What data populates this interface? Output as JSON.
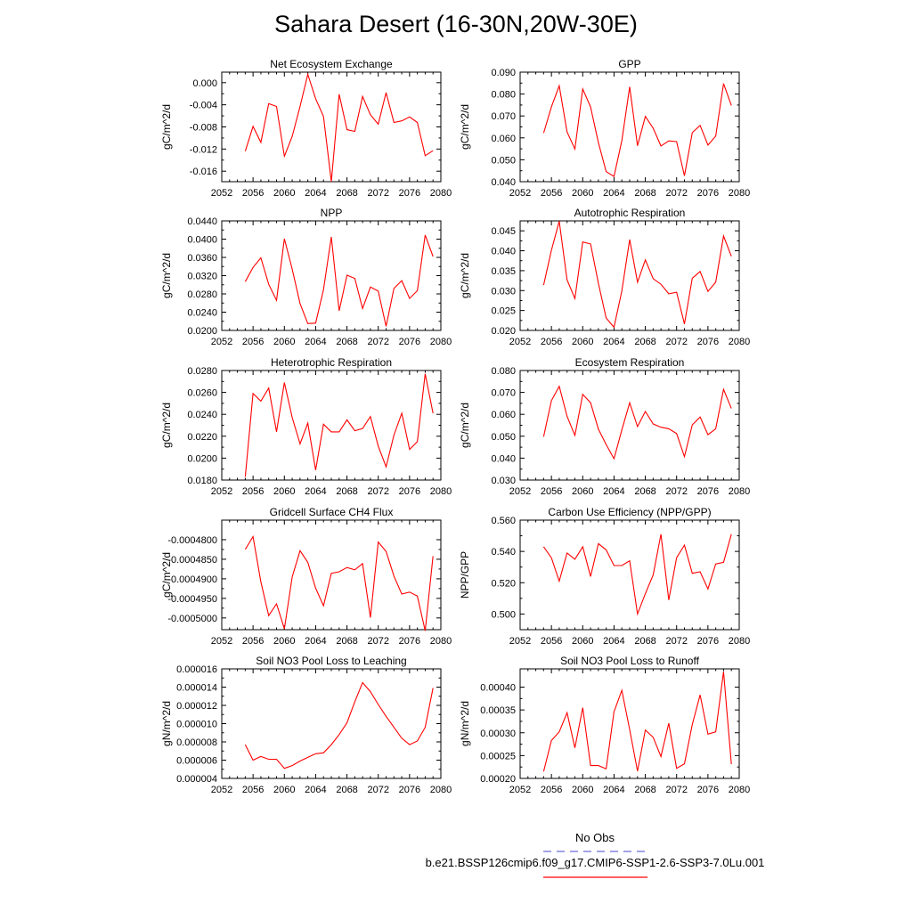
{
  "page": {
    "title": "Sahara Desert (16-30N,20W-30E)"
  },
  "legend": {
    "obs_label": "No Obs",
    "model_label": "b.e21.BSSP126cmip6.f09_g17.CMIP6-SSP1-2.6-SSP3-7.0Lu.001",
    "obs_color": "#6b6bdc",
    "model_color": "#ff0000"
  },
  "colors": {
    "line": "#ff0000",
    "axis": "#000000"
  },
  "chart_data": [
    {
      "type": "line",
      "title": "Net Ecosystem Exchange",
      "ylabel": "gC/m^2/d",
      "xlim": [
        2052,
        2080
      ],
      "ylim": [
        -0.0179,
        0.0019
      ],
      "xticks": [
        2052,
        2056,
        2060,
        2064,
        2068,
        2072,
        2076,
        2080
      ],
      "xtick_labels": [
        "2052",
        "2056",
        "2060",
        "2064",
        "2068",
        "2072",
        "2076",
        "2080"
      ],
      "yticks": [
        0.0,
        -0.004,
        -0.008,
        -0.012,
        -0.016
      ],
      "ytick_labels": [
        "0.000",
        "-0.004",
        "-0.008",
        "-0.012",
        "-0.016"
      ],
      "x": [
        2055,
        2056,
        2057,
        2058,
        2059,
        2060,
        2061,
        2062,
        2063,
        2064,
        2065,
        2066,
        2067,
        2068,
        2069,
        2070,
        2071,
        2072,
        2073,
        2074,
        2075,
        2076,
        2077,
        2078,
        2079
      ],
      "values": [
        -0.0124,
        -0.0079,
        -0.0108,
        -0.0038,
        -0.0043,
        -0.0133,
        -0.0097,
        -0.0043,
        0.0015,
        -0.0029,
        -0.0061,
        -0.0179,
        -0.0021,
        -0.0085,
        -0.0088,
        -0.0025,
        -0.0058,
        -0.0075,
        -0.0018,
        -0.0072,
        -0.0069,
        -0.0062,
        -0.0072,
        -0.0132,
        -0.0123
      ]
    },
    {
      "type": "line",
      "title": "GPP",
      "ylabel": "gC/m^2/d",
      "xlim": [
        2052,
        2080
      ],
      "ylim": [
        0.04,
        0.09
      ],
      "xticks": [
        2052,
        2056,
        2060,
        2064,
        2068,
        2072,
        2076,
        2080
      ],
      "xtick_labels": [
        "2052",
        "2056",
        "2060",
        "2064",
        "2068",
        "2072",
        "2076",
        "2080"
      ],
      "yticks": [
        0.04,
        0.05,
        0.06,
        0.07,
        0.08,
        0.09
      ],
      "ytick_labels": [
        "0.040",
        "0.050",
        "0.060",
        "0.070",
        "0.080",
        "0.090"
      ],
      "x": [
        2055,
        2056,
        2057,
        2058,
        2059,
        2060,
        2061,
        2062,
        2063,
        2064,
        2065,
        2066,
        2067,
        2068,
        2069,
        2070,
        2071,
        2072,
        2073,
        2074,
        2075,
        2076,
        2077,
        2078,
        2079
      ],
      "values": [
        0.0622,
        0.0741,
        0.0838,
        0.0627,
        0.0549,
        0.0823,
        0.0741,
        0.0578,
        0.0446,
        0.0424,
        0.0587,
        0.0833,
        0.0564,
        0.0698,
        0.0644,
        0.0563,
        0.0586,
        0.0583,
        0.0427,
        0.0624,
        0.0657,
        0.0567,
        0.0608,
        0.0848,
        0.0748
      ]
    },
    {
      "type": "line",
      "title": "NPP",
      "ylabel": "gC/m^2/d",
      "xlim": [
        2052,
        2080
      ],
      "ylim": [
        0.02,
        0.044
      ],
      "xticks": [
        2052,
        2056,
        2060,
        2064,
        2068,
        2072,
        2076,
        2080
      ],
      "xtick_labels": [
        "2052",
        "2056",
        "2060",
        "2064",
        "2068",
        "2072",
        "2076",
        "2080"
      ],
      "yticks": [
        0.02,
        0.024,
        0.028,
        0.032,
        0.036,
        0.04,
        0.044
      ],
      "ytick_labels": [
        "0.0200",
        "0.0240",
        "0.0280",
        "0.0320",
        "0.0360",
        "0.0400",
        "0.0440"
      ],
      "x": [
        2055,
        2056,
        2057,
        2058,
        2059,
        2060,
        2061,
        2062,
        2063,
        2064,
        2065,
        2066,
        2067,
        2068,
        2069,
        2070,
        2071,
        2072,
        2073,
        2074,
        2075,
        2076,
        2077,
        2078,
        2079
      ],
      "values": [
        0.0307,
        0.0338,
        0.0359,
        0.0301,
        0.0266,
        0.0401,
        0.0334,
        0.0259,
        0.0215,
        0.0216,
        0.0289,
        0.0405,
        0.0243,
        0.0321,
        0.0314,
        0.0248,
        0.0295,
        0.0286,
        0.0209,
        0.0292,
        0.0309,
        0.027,
        0.0287,
        0.0409,
        0.0362
      ]
    },
    {
      "type": "line",
      "title": "Autotrophic Respiration",
      "ylabel": "gC/m^2/d",
      "xlim": [
        2052,
        2080
      ],
      "ylim": [
        0.02,
        0.0475
      ],
      "xticks": [
        2052,
        2056,
        2060,
        2064,
        2068,
        2072,
        2076,
        2080
      ],
      "xtick_labels": [
        "2052",
        "2056",
        "2060",
        "2064",
        "2068",
        "2072",
        "2076",
        "2080"
      ],
      "yticks": [
        0.02,
        0.025,
        0.03,
        0.035,
        0.04,
        0.045
      ],
      "ytick_labels": [
        "0.020",
        "0.025",
        "0.030",
        "0.035",
        "0.040",
        "0.045"
      ],
      "x": [
        2055,
        2056,
        2057,
        2058,
        2059,
        2060,
        2061,
        2062,
        2063,
        2064,
        2065,
        2066,
        2067,
        2068,
        2069,
        2070,
        2071,
        2072,
        2073,
        2074,
        2075,
        2076,
        2077,
        2078,
        2079
      ],
      "values": [
        0.0314,
        0.0401,
        0.0474,
        0.0327,
        0.028,
        0.0422,
        0.0417,
        0.0318,
        0.0231,
        0.0208,
        0.0299,
        0.0428,
        0.0321,
        0.0377,
        0.033,
        0.0316,
        0.0292,
        0.0296,
        0.0216,
        0.0331,
        0.0348,
        0.0298,
        0.0321,
        0.0437,
        0.0386
      ]
    },
    {
      "type": "line",
      "title": "Heterotrophic Respiration",
      "ylabel": "gC/m^2/d",
      "xlim": [
        2052,
        2080
      ],
      "ylim": [
        0.018,
        0.028
      ],
      "xticks": [
        2052,
        2056,
        2060,
        2064,
        2068,
        2072,
        2076,
        2080
      ],
      "xtick_labels": [
        "2052",
        "2056",
        "2060",
        "2064",
        "2068",
        "2072",
        "2076",
        "2080"
      ],
      "yticks": [
        0.018,
        0.02,
        0.022,
        0.024,
        0.026,
        0.028
      ],
      "ytick_labels": [
        "0.0180",
        "0.0200",
        "0.0220",
        "0.0240",
        "0.0260",
        "0.0280"
      ],
      "x": [
        2055,
        2056,
        2057,
        2058,
        2059,
        2060,
        2061,
        2062,
        2063,
        2064,
        2065,
        2066,
        2067,
        2068,
        2069,
        2070,
        2071,
        2072,
        2073,
        2074,
        2075,
        2076,
        2077,
        2078,
        2079
      ],
      "values": [
        0.0183,
        0.0259,
        0.0252,
        0.0264,
        0.0224,
        0.0269,
        0.0237,
        0.0213,
        0.0232,
        0.0189,
        0.0231,
        0.0224,
        0.0224,
        0.0235,
        0.0225,
        0.0227,
        0.0238,
        0.0211,
        0.0192,
        0.0221,
        0.0241,
        0.0208,
        0.0215,
        0.0277,
        0.0241
      ]
    },
    {
      "type": "line",
      "title": "Ecosystem Respiration",
      "ylabel": "gC/m^2/d",
      "xlim": [
        2052,
        2080
      ],
      "ylim": [
        0.03,
        0.08
      ],
      "xticks": [
        2052,
        2056,
        2060,
        2064,
        2068,
        2072,
        2076,
        2080
      ],
      "xtick_labels": [
        "2052",
        "2056",
        "2060",
        "2064",
        "2068",
        "2072",
        "2076",
        "2080"
      ],
      "yticks": [
        0.03,
        0.04,
        0.05,
        0.06,
        0.07,
        0.08
      ],
      "ytick_labels": [
        "0.030",
        "0.040",
        "0.050",
        "0.060",
        "0.070",
        "0.080"
      ],
      "x": [
        2055,
        2056,
        2057,
        2058,
        2059,
        2060,
        2061,
        2062,
        2063,
        2064,
        2065,
        2066,
        2067,
        2068,
        2069,
        2070,
        2071,
        2072,
        2073,
        2074,
        2075,
        2076,
        2077,
        2078,
        2079
      ],
      "values": [
        0.0498,
        0.0662,
        0.0728,
        0.0591,
        0.0504,
        0.0691,
        0.0653,
        0.0532,
        0.0462,
        0.0397,
        0.0529,
        0.0653,
        0.0544,
        0.0613,
        0.0556,
        0.0541,
        0.0534,
        0.0512,
        0.0407,
        0.0552,
        0.0588,
        0.0507,
        0.0534,
        0.0714,
        0.0627
      ]
    },
    {
      "type": "line",
      "title": "Gridcell Surface CH4 Flux",
      "ylabel": "gC/m^2/d",
      "xlim": [
        2052,
        2080
      ],
      "ylim": [
        -0.000503,
        -0.000475
      ],
      "xticks": [
        2052,
        2056,
        2060,
        2064,
        2068,
        2072,
        2076,
        2080
      ],
      "xtick_labels": [
        "2052",
        "2056",
        "2060",
        "2064",
        "2068",
        "2072",
        "2076",
        "2080"
      ],
      "yticks": [
        -0.00048,
        -0.000485,
        -0.00049,
        -0.000495,
        -0.0005
      ],
      "ytick_labels": [
        "-0.0004800",
        "-0.0004850",
        "-0.0004900",
        "-0.0004950",
        "-0.0005000"
      ],
      "x": [
        2055,
        2056,
        2057,
        2058,
        2059,
        2060,
        2061,
        2062,
        2063,
        2064,
        2065,
        2066,
        2067,
        2068,
        2069,
        2070,
        2071,
        2072,
        2073,
        2074,
        2075,
        2076,
        2077,
        2078,
        2079
      ],
      "values": [
        -0.0004825,
        -0.0004792,
        -0.0004908,
        -0.0004994,
        -0.0004964,
        -0.0005028,
        -0.0004895,
        -0.0004828,
        -0.0004858,
        -0.0004924,
        -0.0004969,
        -0.0004886,
        -0.0004882,
        -0.0004871,
        -0.0004877,
        -0.0004861,
        -0.0004999,
        -0.0004806,
        -0.000483,
        -0.0004893,
        -0.0004939,
        -0.0004934,
        -0.0004944,
        -0.0005033,
        -0.0004842
      ]
    },
    {
      "type": "line",
      "title": "Carbon Use Efficiency (NPP/GPP)",
      "ylabel": "NPP/GPP",
      "xlim": [
        2052,
        2080
      ],
      "ylim": [
        0.49,
        0.56
      ],
      "xticks": [
        2052,
        2056,
        2060,
        2064,
        2068,
        2072,
        2076,
        2080
      ],
      "xtick_labels": [
        "2052",
        "2056",
        "2060",
        "2064",
        "2068",
        "2072",
        "2076",
        "2080"
      ],
      "yticks": [
        0.5,
        0.52,
        0.54,
        0.56
      ],
      "ytick_labels": [
        "0.500",
        "0.520",
        "0.540",
        "0.560"
      ],
      "x": [
        2055,
        2056,
        2057,
        2058,
        2059,
        2060,
        2061,
        2062,
        2063,
        2064,
        2065,
        2066,
        2067,
        2068,
        2069,
        2070,
        2071,
        2072,
        2073,
        2074,
        2075,
        2076,
        2077,
        2078,
        2079
      ],
      "values": [
        0.543,
        0.536,
        0.521,
        0.539,
        0.535,
        0.543,
        0.524,
        0.545,
        0.541,
        0.531,
        0.531,
        0.534,
        0.5,
        0.513,
        0.525,
        0.551,
        0.509,
        0.536,
        0.544,
        0.526,
        0.527,
        0.516,
        0.532,
        0.533,
        0.551
      ]
    },
    {
      "type": "line",
      "title": "Soil NO3 Pool Loss to Leaching",
      "ylabel": "gN/m^2/d",
      "xlim": [
        2052,
        2080
      ],
      "ylim": [
        4e-06,
        1.6e-05
      ],
      "xticks": [
        2052,
        2056,
        2060,
        2064,
        2068,
        2072,
        2076,
        2080
      ],
      "xtick_labels": [
        "2052",
        "2056",
        "2060",
        "2064",
        "2068",
        "2072",
        "2076",
        "2080"
      ],
      "yticks": [
        4e-06,
        6e-06,
        8e-06,
        1e-05,
        1.2e-05,
        1.4e-05,
        1.6e-05
      ],
      "ytick_labels": [
        "0.000004",
        "0.000006",
        "0.000008",
        "0.000010",
        "0.000012",
        "0.000014",
        "0.000016"
      ],
      "x": [
        2055,
        2056,
        2057,
        2058,
        2059,
        2060,
        2061,
        2062,
        2063,
        2064,
        2065,
        2066,
        2067,
        2068,
        2069,
        2070,
        2071,
        2072,
        2073,
        2074,
        2075,
        2076,
        2077,
        2078,
        2079
      ],
      "values": [
        7.7e-06,
        6e-06,
        6.4e-06,
        6.1e-06,
        6.1e-06,
        5.1e-06,
        5.4e-06,
        5.9e-06,
        6.3e-06,
        6.7e-06,
        6.8e-06,
        7.7e-06,
        8.8e-06,
        1.01e-05,
        1.24e-05,
        1.45e-05,
        1.35e-05,
        1.21e-05,
        1.08e-05,
        9.6e-06,
        8.4e-06,
        7.7e-06,
        8.1e-06,
        9.6e-06,
        1.39e-05
      ]
    },
    {
      "type": "line",
      "title": "Soil NO3 Pool Loss to Runoff",
      "ylabel": "gN/m^2/d",
      "xlim": [
        2052,
        2080
      ],
      "ylim": [
        0.0002,
        0.00044
      ],
      "xticks": [
        2052,
        2056,
        2060,
        2064,
        2068,
        2072,
        2076,
        2080
      ],
      "xtick_labels": [
        "2052",
        "2056",
        "2060",
        "2064",
        "2068",
        "2072",
        "2076",
        "2080"
      ],
      "yticks": [
        0.0002,
        0.00025,
        0.0003,
        0.00035,
        0.0004
      ],
      "ytick_labels": [
        "0.00020",
        "0.00025",
        "0.00030",
        "0.00035",
        "0.00040"
      ],
      "x": [
        2055,
        2056,
        2057,
        2058,
        2059,
        2060,
        2061,
        2062,
        2063,
        2064,
        2065,
        2066,
        2067,
        2068,
        2069,
        2070,
        2071,
        2072,
        2073,
        2074,
        2075,
        2076,
        2077,
        2078,
        2079
      ],
      "values": [
        0.000215,
        0.000283,
        0.000302,
        0.000344,
        0.000267,
        0.000355,
        0.000228,
        0.000228,
        0.000221,
        0.000346,
        0.000393,
        0.000307,
        0.000216,
        0.000306,
        0.00029,
        0.000248,
        0.000321,
        0.000222,
        0.000232,
        0.000318,
        0.000383,
        0.000297,
        0.000302,
        0.000434,
        0.000231
      ]
    }
  ]
}
